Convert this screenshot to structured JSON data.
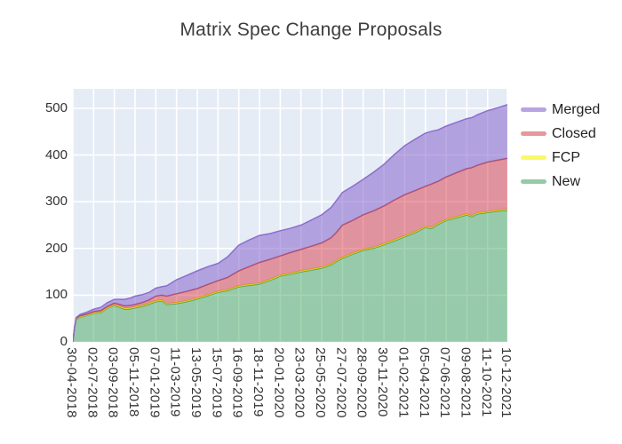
{
  "title": "Matrix Spec Change Proposals",
  "legend": {
    "items": [
      {
        "label": "Merged",
        "swatch_color": "#b9a4e2"
      },
      {
        "label": "Closed",
        "swatch_color": "#e6979b"
      },
      {
        "label": "FCP",
        "swatch_color": "#f9f967"
      },
      {
        "label": "New",
        "swatch_color": "#93cba6"
      }
    ]
  },
  "colors": {
    "figure_bg": "#ffffff",
    "plot_bg": "#e5ecf6",
    "grid": "#ffffff",
    "title_text": "#3d3d3d",
    "tick_text": "#333333"
  },
  "chart_data": {
    "type": "area",
    "stacked": true,
    "title": "Matrix Spec Change Proposals",
    "xlabel": "",
    "ylabel": "",
    "grid": true,
    "legend_position": "right",
    "y_ticks": [
      0,
      100,
      200,
      300,
      400,
      500
    ],
    "ylim": [
      0,
      542
    ],
    "x_range_days": [
      0,
      1320
    ],
    "x_tick_days": [
      0,
      63,
      126,
      189,
      252,
      315,
      378,
      441,
      504,
      567,
      630,
      693,
      756,
      819,
      882,
      945,
      1008,
      1071,
      1134,
      1197,
      1260,
      1320
    ],
    "x_tick_labels": [
      "30-04-2018",
      "02-07-2018",
      "03-09-2018",
      "05-11-2018",
      "07-01-2019",
      "11-03-2019",
      "13-05-2019",
      "15-07-2019",
      "16-09-2019",
      "18-11-2019",
      "20-01-2020",
      "23-03-2020",
      "25-05-2020",
      "27-07-2020",
      "28-09-2020",
      "30-11-2020",
      "01-02-2021",
      "05-04-2021",
      "07-06-2021",
      "09-08-2021",
      "11-10-2021",
      "10-12-2021"
    ],
    "x_days": [
      0,
      5,
      10,
      22,
      40,
      63,
      85,
      105,
      126,
      142,
      158,
      175,
      189,
      210,
      232,
      252,
      270,
      285,
      315,
      345,
      378,
      410,
      441,
      470,
      504,
      535,
      567,
      600,
      630,
      660,
      693,
      725,
      756,
      785,
      800,
      819,
      850,
      882,
      915,
      945,
      975,
      1008,
      1040,
      1071,
      1090,
      1110,
      1134,
      1165,
      1197,
      1212,
      1228,
      1260,
      1290,
      1320
    ],
    "series": [
      {
        "name": "New",
        "fill": "rgba(53,162,80,0.45)",
        "line": "rgba(70,150,90,0.9)",
        "values": [
          0,
          30,
          48,
          53,
          56,
          61,
          63,
          72,
          78,
          74,
          70,
          71,
          73,
          76,
          81,
          86,
          88,
          80,
          82,
          86,
          92,
          99,
          106,
          110,
          118,
          121,
          124,
          132,
          141,
          145,
          150,
          154,
          158,
          165,
          172,
          179,
          188,
          196,
          201,
          208,
          216,
          225,
          234,
          245,
          243,
          252,
          260,
          266,
          272,
          268,
          274,
          277,
          280,
          282
        ]
      },
      {
        "name": "FCP",
        "fill": "rgba(255,244,0,0.65)",
        "line": "rgba(225,212,30,1)",
        "values": [
          0,
          0,
          1,
          1,
          1,
          1,
          1,
          1,
          1,
          2,
          2,
          2,
          2,
          2,
          2,
          2,
          2,
          2,
          2,
          2,
          2,
          2,
          2,
          2,
          2,
          2,
          2,
          2,
          2,
          2,
          2,
          2,
          2,
          2,
          2,
          2,
          2,
          2,
          2,
          2,
          2,
          2,
          2,
          2,
          2,
          2,
          2,
          2,
          2,
          2,
          2,
          2,
          2,
          2
        ]
      },
      {
        "name": "Closed",
        "fill": "rgba(214,39,54,0.45)",
        "line": "rgba(185,75,90,0.95)",
        "values": [
          0,
          1,
          1,
          2,
          2,
          3,
          3,
          3,
          4,
          4,
          5,
          5,
          5,
          6,
          7,
          10,
          10,
          16,
          19,
          20,
          20,
          22,
          23,
          26,
          32,
          38,
          44,
          43,
          41,
          44,
          46,
          49,
          52,
          56,
          60,
          69,
          70,
          74,
          78,
          81,
          85,
          88,
          88,
          86,
          93,
          90,
          91,
          94,
          97,
          103,
          102,
          106,
          107,
          109
        ]
      },
      {
        "name": "Merged",
        "fill": "rgba(125,85,200,0.5)",
        "line": "rgba(140,110,205,1)",
        "values": [
          0,
          1,
          2,
          3,
          4,
          5,
          7,
          8,
          8,
          11,
          14,
          16,
          18,
          17,
          16,
          17,
          18,
          22,
          30,
          34,
          38,
          38,
          37,
          44,
          55,
          57,
          58,
          55,
          54,
          52,
          52,
          56,
          60,
          65,
          68,
          70,
          73,
          76,
          83,
          89,
          97,
          105,
          110,
          114,
          113,
          110,
          109,
          108,
          107,
          107,
          108,
          110,
          112,
          115
        ]
      }
    ],
    "legend_order": [
      "Merged",
      "Closed",
      "FCP",
      "New"
    ]
  }
}
